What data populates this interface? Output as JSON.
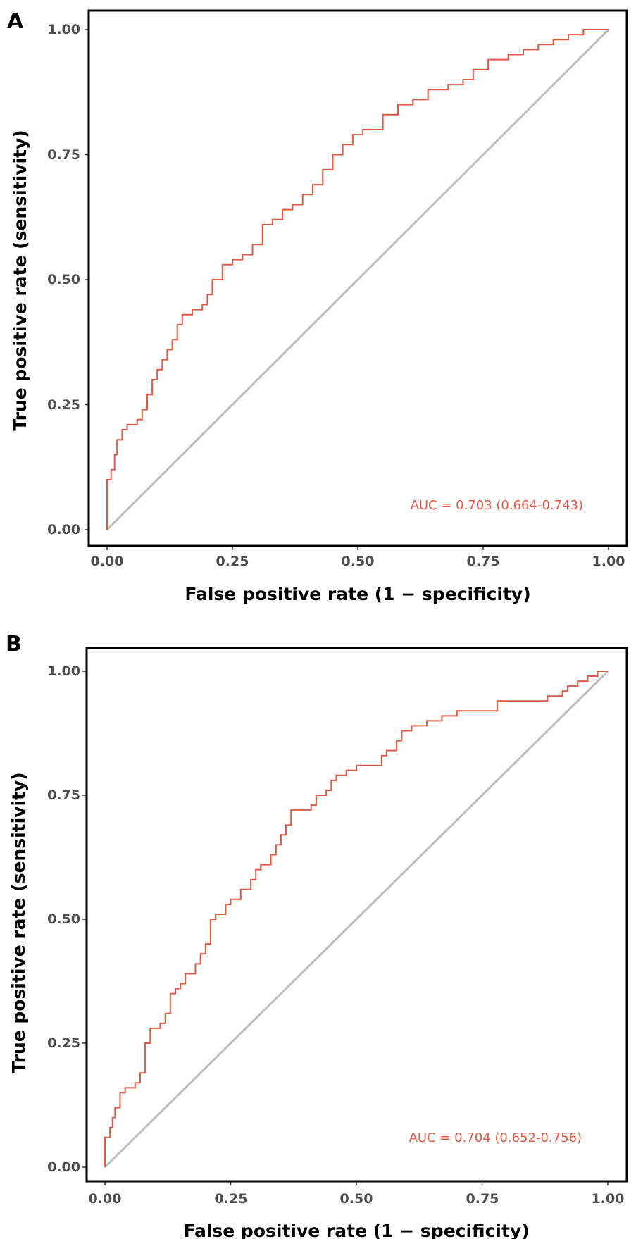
{
  "colors": {
    "roc": "#e15a45",
    "diagonal": "#bdbdbd",
    "frame": "#000000",
    "tick_text": "#4d4d4d"
  },
  "chart_data": [
    {
      "type": "line",
      "panel": "A",
      "xlabel": "False positive rate (1 − specificity)",
      "ylabel": "True positive rate (sensitivity)",
      "xlim": [
        0,
        1
      ],
      "ylim": [
        0,
        1
      ],
      "x_ticks": [
        "0.00",
        "0.25",
        "0.50",
        "0.75",
        "1.00"
      ],
      "y_ticks": [
        "0.00",
        "0.25",
        "0.50",
        "0.75",
        "1.00"
      ],
      "annotation": "AUC = 0.703 (0.664-0.743)",
      "reference_line": [
        [
          0,
          0
        ],
        [
          1,
          1
        ]
      ],
      "series": [
        {
          "name": "ROC",
          "points": [
            [
              0,
              0
            ],
            [
              0,
              0.1
            ],
            [
              0.008,
              0.1
            ],
            [
              0.008,
              0.12
            ],
            [
              0.015,
              0.12
            ],
            [
              0.015,
              0.15
            ],
            [
              0.02,
              0.15
            ],
            [
              0.02,
              0.18
            ],
            [
              0.03,
              0.18
            ],
            [
              0.03,
              0.2
            ],
            [
              0.04,
              0.2
            ],
            [
              0.04,
              0.21
            ],
            [
              0.06,
              0.21
            ],
            [
              0.06,
              0.22
            ],
            [
              0.07,
              0.22
            ],
            [
              0.07,
              0.24
            ],
            [
              0.08,
              0.24
            ],
            [
              0.08,
              0.27
            ],
            [
              0.09,
              0.27
            ],
            [
              0.09,
              0.3
            ],
            [
              0.1,
              0.3
            ],
            [
              0.1,
              0.32
            ],
            [
              0.11,
              0.32
            ],
            [
              0.11,
              0.34
            ],
            [
              0.12,
              0.34
            ],
            [
              0.12,
              0.36
            ],
            [
              0.13,
              0.36
            ],
            [
              0.13,
              0.38
            ],
            [
              0.14,
              0.38
            ],
            [
              0.14,
              0.41
            ],
            [
              0.15,
              0.41
            ],
            [
              0.15,
              0.43
            ],
            [
              0.17,
              0.43
            ],
            [
              0.17,
              0.44
            ],
            [
              0.19,
              0.44
            ],
            [
              0.19,
              0.45
            ],
            [
              0.2,
              0.45
            ],
            [
              0.2,
              0.47
            ],
            [
              0.21,
              0.47
            ],
            [
              0.21,
              0.5
            ],
            [
              0.23,
              0.5
            ],
            [
              0.23,
              0.53
            ],
            [
              0.25,
              0.53
            ],
            [
              0.25,
              0.54
            ],
            [
              0.27,
              0.54
            ],
            [
              0.27,
              0.55
            ],
            [
              0.29,
              0.55
            ],
            [
              0.29,
              0.57
            ],
            [
              0.31,
              0.57
            ],
            [
              0.31,
              0.61
            ],
            [
              0.33,
              0.61
            ],
            [
              0.33,
              0.62
            ],
            [
              0.35,
              0.62
            ],
            [
              0.35,
              0.64
            ],
            [
              0.37,
              0.64
            ],
            [
              0.37,
              0.65
            ],
            [
              0.39,
              0.65
            ],
            [
              0.39,
              0.67
            ],
            [
              0.41,
              0.67
            ],
            [
              0.41,
              0.69
            ],
            [
              0.43,
              0.69
            ],
            [
              0.43,
              0.72
            ],
            [
              0.45,
              0.72
            ],
            [
              0.45,
              0.75
            ],
            [
              0.47,
              0.75
            ],
            [
              0.47,
              0.77
            ],
            [
              0.49,
              0.77
            ],
            [
              0.49,
              0.79
            ],
            [
              0.51,
              0.79
            ],
            [
              0.51,
              0.8
            ],
            [
              0.55,
              0.8
            ],
            [
              0.55,
              0.83
            ],
            [
              0.58,
              0.83
            ],
            [
              0.58,
              0.85
            ],
            [
              0.61,
              0.85
            ],
            [
              0.61,
              0.86
            ],
            [
              0.64,
              0.86
            ],
            [
              0.64,
              0.88
            ],
            [
              0.68,
              0.88
            ],
            [
              0.68,
              0.89
            ],
            [
              0.71,
              0.89
            ],
            [
              0.71,
              0.9
            ],
            [
              0.73,
              0.9
            ],
            [
              0.73,
              0.92
            ],
            [
              0.76,
              0.92
            ],
            [
              0.76,
              0.94
            ],
            [
              0.8,
              0.94
            ],
            [
              0.8,
              0.95
            ],
            [
              0.83,
              0.95
            ],
            [
              0.83,
              0.96
            ],
            [
              0.86,
              0.96
            ],
            [
              0.86,
              0.97
            ],
            [
              0.89,
              0.97
            ],
            [
              0.89,
              0.98
            ],
            [
              0.92,
              0.98
            ],
            [
              0.92,
              0.99
            ],
            [
              0.95,
              0.99
            ],
            [
              0.95,
              1
            ],
            [
              1,
              1
            ]
          ]
        }
      ]
    },
    {
      "type": "line",
      "panel": "B",
      "xlabel": "False positive rate (1 − specificity)",
      "ylabel": "True positive rate (sensitivity)",
      "xlim": [
        0,
        1
      ],
      "ylim": [
        0,
        1
      ],
      "x_ticks": [
        "0.00",
        "0.25",
        "0.50",
        "0.75",
        "1.00"
      ],
      "y_ticks": [
        "0.00",
        "0.25",
        "0.50",
        "0.75",
        "1.00"
      ],
      "annotation": "AUC = 0.704 (0.652-0.756)",
      "reference_line": [
        [
          0,
          0
        ],
        [
          1,
          1
        ]
      ],
      "series": [
        {
          "name": "ROC",
          "points": [
            [
              0,
              0
            ],
            [
              0,
              0.06
            ],
            [
              0.01,
              0.06
            ],
            [
              0.01,
              0.08
            ],
            [
              0.015,
              0.08
            ],
            [
              0.015,
              0.1
            ],
            [
              0.02,
              0.1
            ],
            [
              0.02,
              0.12
            ],
            [
              0.03,
              0.12
            ],
            [
              0.03,
              0.15
            ],
            [
              0.04,
              0.15
            ],
            [
              0.04,
              0.16
            ],
            [
              0.06,
              0.16
            ],
            [
              0.06,
              0.17
            ],
            [
              0.07,
              0.17
            ],
            [
              0.07,
              0.19
            ],
            [
              0.08,
              0.19
            ],
            [
              0.08,
              0.25
            ],
            [
              0.09,
              0.25
            ],
            [
              0.09,
              0.28
            ],
            [
              0.11,
              0.28
            ],
            [
              0.11,
              0.29
            ],
            [
              0.12,
              0.29
            ],
            [
              0.12,
              0.31
            ],
            [
              0.13,
              0.31
            ],
            [
              0.13,
              0.35
            ],
            [
              0.14,
              0.35
            ],
            [
              0.14,
              0.36
            ],
            [
              0.15,
              0.36
            ],
            [
              0.15,
              0.37
            ],
            [
              0.16,
              0.37
            ],
            [
              0.16,
              0.39
            ],
            [
              0.18,
              0.39
            ],
            [
              0.18,
              0.41
            ],
            [
              0.19,
              0.41
            ],
            [
              0.19,
              0.43
            ],
            [
              0.2,
              0.43
            ],
            [
              0.2,
              0.45
            ],
            [
              0.21,
              0.45
            ],
            [
              0.21,
              0.5
            ],
            [
              0.22,
              0.5
            ],
            [
              0.22,
              0.51
            ],
            [
              0.24,
              0.51
            ],
            [
              0.24,
              0.53
            ],
            [
              0.25,
              0.53
            ],
            [
              0.25,
              0.54
            ],
            [
              0.27,
              0.54
            ],
            [
              0.27,
              0.56
            ],
            [
              0.29,
              0.56
            ],
            [
              0.29,
              0.58
            ],
            [
              0.3,
              0.58
            ],
            [
              0.3,
              0.6
            ],
            [
              0.31,
              0.6
            ],
            [
              0.31,
              0.61
            ],
            [
              0.33,
              0.61
            ],
            [
              0.33,
              0.63
            ],
            [
              0.34,
              0.63
            ],
            [
              0.34,
              0.65
            ],
            [
              0.35,
              0.65
            ],
            [
              0.35,
              0.67
            ],
            [
              0.36,
              0.67
            ],
            [
              0.36,
              0.69
            ],
            [
              0.37,
              0.69
            ],
            [
              0.37,
              0.72
            ],
            [
              0.41,
              0.72
            ],
            [
              0.41,
              0.73
            ],
            [
              0.42,
              0.73
            ],
            [
              0.42,
              0.75
            ],
            [
              0.44,
              0.75
            ],
            [
              0.44,
              0.76
            ],
            [
              0.45,
              0.76
            ],
            [
              0.45,
              0.78
            ],
            [
              0.46,
              0.78
            ],
            [
              0.46,
              0.79
            ],
            [
              0.48,
              0.79
            ],
            [
              0.48,
              0.8
            ],
            [
              0.5,
              0.8
            ],
            [
              0.5,
              0.81
            ],
            [
              0.55,
              0.81
            ],
            [
              0.55,
              0.83
            ],
            [
              0.56,
              0.83
            ],
            [
              0.56,
              0.84
            ],
            [
              0.58,
              0.84
            ],
            [
              0.58,
              0.86
            ],
            [
              0.59,
              0.86
            ],
            [
              0.59,
              0.88
            ],
            [
              0.61,
              0.88
            ],
            [
              0.61,
              0.89
            ],
            [
              0.64,
              0.89
            ],
            [
              0.64,
              0.9
            ],
            [
              0.67,
              0.9
            ],
            [
              0.67,
              0.91
            ],
            [
              0.7,
              0.91
            ],
            [
              0.7,
              0.92
            ],
            [
              0.78,
              0.92
            ],
            [
              0.78,
              0.94
            ],
            [
              0.88,
              0.94
            ],
            [
              0.88,
              0.95
            ],
            [
              0.91,
              0.95
            ],
            [
              0.91,
              0.96
            ],
            [
              0.92,
              0.96
            ],
            [
              0.92,
              0.97
            ],
            [
              0.94,
              0.97
            ],
            [
              0.94,
              0.98
            ],
            [
              0.96,
              0.98
            ],
            [
              0.96,
              0.99
            ],
            [
              0.98,
              0.99
            ],
            [
              0.98,
              1
            ],
            [
              1,
              1
            ]
          ]
        }
      ]
    }
  ]
}
